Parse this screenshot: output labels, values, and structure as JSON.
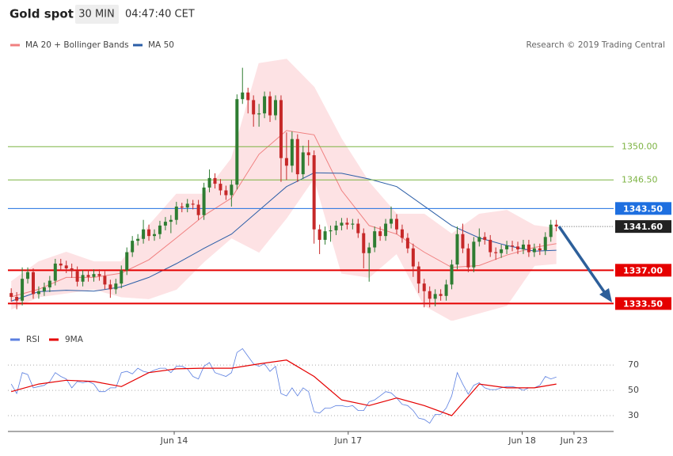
{
  "header": {
    "title": "Gold spot",
    "interval": "30 MIN",
    "time": "04:47:40 CET"
  },
  "credit": "Research © 2019 Trading Central",
  "chart_data": [
    {
      "type": "candlestick",
      "up_color": "#2e7d32",
      "down_color": "#c62828",
      "xlim": [
        -0.6,
        109.4
      ],
      "ylim": [
        1331.7,
        1359.6
      ],
      "open": [
        1334.6,
        1334.2,
        1333.8,
        1336.1,
        1336.8,
        1334.5,
        1334.8,
        1335.2,
        1335.9,
        1337.7,
        1337.5,
        1337.2,
        1336.9,
        1335.8,
        1336.5,
        1336.3,
        1336.6,
        1336.4,
        1335.5,
        1335.0,
        1335.6,
        1337.0,
        1338.9,
        1340.1,
        1340.3,
        1341.3,
        1340.6,
        1340.8,
        1341.7,
        1342.1,
        1342.3,
        1343.7,
        1343.6,
        1344.0,
        1343.9,
        1342.8,
        1345.7,
        1346.7,
        1346.1,
        1345.4,
        1344.9,
        1346.0,
        1355.0,
        1355.7,
        1354.9,
        1353.4,
        1353.5,
        1355.3,
        1353.3,
        1354.9,
        1348.8,
        1348.0,
        1350.8,
        1347.1,
        1349.4,
        1349.1,
        1341.3,
        1340.2,
        1341.1,
        1341.2,
        1341.7,
        1342.0,
        1341.8,
        1341.9,
        1340.9,
        1338.8,
        1339.4,
        1341.1,
        1340.6,
        1341.9,
        1342.4,
        1341.3,
        1340.4,
        1339.3,
        1337.4,
        1335.6,
        1334.8,
        1334.0,
        1334.5,
        1334.3,
        1335.5,
        1337.6,
        1340.8,
        1339.3,
        1337.3,
        1340.0,
        1340.5,
        1340.2,
        1338.9,
        1338.8,
        1339.2,
        1339.6,
        1339.5,
        1339.2,
        1339.7,
        1338.9,
        1339.3,
        1339.1,
        1340.5,
        1341.8
      ],
      "high": [
        1335.1,
        1334.7,
        1337.3,
        1337.3,
        1337.2,
        1335.3,
        1335.7,
        1336.4,
        1338.2,
        1338.2,
        1338.0,
        1337.7,
        1337.4,
        1337.0,
        1337.0,
        1337.1,
        1337.1,
        1336.9,
        1336.0,
        1336.1,
        1337.5,
        1339.4,
        1340.6,
        1340.8,
        1342.3,
        1341.8,
        1341.3,
        1342.2,
        1342.6,
        1342.8,
        1344.2,
        1344.1,
        1344.5,
        1344.4,
        1344.4,
        1346.2,
        1347.6,
        1347.2,
        1346.6,
        1345.9,
        1346.5,
        1355.5,
        1358.3,
        1356.2,
        1355.4,
        1354.5,
        1355.8,
        1355.8,
        1355.4,
        1355.4,
        1351.5,
        1351.6,
        1351.3,
        1350.1,
        1350.7,
        1349.6,
        1341.8,
        1341.6,
        1341.7,
        1342.2,
        1342.5,
        1342.5,
        1342.4,
        1342.4,
        1341.4,
        1339.9,
        1341.6,
        1341.6,
        1342.4,
        1343.7,
        1342.9,
        1341.8,
        1340.9,
        1339.8,
        1337.9,
        1336.1,
        1335.3,
        1335.0,
        1335.0,
        1336.0,
        1338.1,
        1341.6,
        1341.9,
        1339.8,
        1340.5,
        1341.4,
        1341.0,
        1340.7,
        1339.4,
        1339.7,
        1340.1,
        1340.1,
        1340.0,
        1340.2,
        1340.2,
        1339.8,
        1339.8,
        1341.0,
        1342.3,
        1342.3
      ],
      "low": [
        1333.7,
        1332.9,
        1333.3,
        1335.6,
        1334.0,
        1334.0,
        1334.3,
        1334.7,
        1335.4,
        1337.0,
        1336.7,
        1336.2,
        1335.3,
        1335.3,
        1335.8,
        1335.8,
        1335.9,
        1335.0,
        1334.1,
        1334.5,
        1335.1,
        1336.5,
        1338.4,
        1339.6,
        1339.8,
        1340.1,
        1340.1,
        1340.3,
        1341.2,
        1340.9,
        1341.8,
        1343.1,
        1343.1,
        1343.4,
        1342.3,
        1342.3,
        1345.2,
        1345.6,
        1344.9,
        1344.4,
        1343.7,
        1345.5,
        1354.5,
        1353.5,
        1352.1,
        1352.1,
        1353.0,
        1352.6,
        1352.8,
        1346.3,
        1346.5,
        1347.3,
        1346.3,
        1346.6,
        1348.0,
        1339.8,
        1338.7,
        1339.7,
        1340.0,
        1340.7,
        1341.2,
        1341.3,
        1341.3,
        1340.4,
        1337.2,
        1335.8,
        1338.9,
        1340.1,
        1340.1,
        1341.4,
        1340.8,
        1339.9,
        1338.8,
        1336.3,
        1334.6,
        1333.1,
        1333.1,
        1333.2,
        1333.8,
        1333.8,
        1335.0,
        1337.1,
        1338.8,
        1336.8,
        1336.8,
        1339.5,
        1339.7,
        1338.4,
        1338.1,
        1338.3,
        1338.7,
        1339.0,
        1338.7,
        1338.7,
        1338.4,
        1338.4,
        1338.6,
        1338.6,
        1340.0,
        1341.1
      ],
      "close": [
        1334.2,
        1333.8,
        1336.1,
        1336.8,
        1334.5,
        1334.8,
        1335.2,
        1335.9,
        1337.7,
        1337.5,
        1337.2,
        1336.9,
        1335.8,
        1336.5,
        1336.3,
        1336.6,
        1336.4,
        1335.5,
        1335.0,
        1335.6,
        1337.0,
        1338.9,
        1340.1,
        1340.3,
        1341.3,
        1340.6,
        1340.8,
        1341.7,
        1342.1,
        1342.3,
        1343.7,
        1343.6,
        1344.0,
        1343.9,
        1342.8,
        1345.7,
        1346.7,
        1346.1,
        1345.4,
        1344.9,
        1346.0,
        1355.0,
        1355.7,
        1354.9,
        1353.4,
        1353.5,
        1355.3,
        1353.3,
        1354.9,
        1348.8,
        1348.0,
        1350.8,
        1347.1,
        1349.4,
        1349.1,
        1341.3,
        1340.2,
        1341.1,
        1341.2,
        1341.7,
        1342.0,
        1341.8,
        1341.9,
        1340.9,
        1338.8,
        1339.4,
        1341.1,
        1340.6,
        1341.9,
        1342.4,
        1341.3,
        1340.4,
        1339.3,
        1337.4,
        1335.6,
        1334.8,
        1334.0,
        1334.5,
        1334.3,
        1335.5,
        1337.6,
        1340.8,
        1339.3,
        1337.3,
        1340.0,
        1340.5,
        1340.2,
        1338.9,
        1338.8,
        1339.2,
        1339.6,
        1339.5,
        1339.2,
        1339.7,
        1338.9,
        1339.3,
        1339.1,
        1340.5,
        1341.8,
        1341.6
      ],
      "series": [
        {
          "name": "MA 20 + Bollinger Bands",
          "color": "#f08080",
          "band_color": "#fde2e4",
          "x": [
            0,
            5,
            10,
            15,
            20,
            25,
            30,
            35,
            40,
            45,
            50,
            55,
            60,
            65,
            70,
            75,
            80,
            85,
            90,
            95,
            99
          ],
          "values": [
            1334.2,
            1335.0,
            1336.25,
            1336.25,
            1336.7,
            1338.1,
            1340.4,
            1342.75,
            1344.6,
            1349.2,
            1351.7,
            1351.25,
            1345.4,
            1341.7,
            1340.8,
            1338.9,
            1337.3,
            1337.5,
            1338.6,
            1339.4,
            1339.8
          ],
          "upper": [
            1335.8,
            1337.9,
            1338.9,
            1337.9,
            1337.9,
            1341.7,
            1345.0,
            1345.0,
            1348.75,
            1358.75,
            1359.2,
            1356.25,
            1350.8,
            1346.25,
            1342.9,
            1342.9,
            1340.8,
            1342.9,
            1343.3,
            1341.7,
            1341.4
          ],
          "lower": [
            1332.9,
            1334.2,
            1334.6,
            1335.0,
            1334.2,
            1334.0,
            1335.0,
            1337.9,
            1340.4,
            1338.9,
            1342.5,
            1346.7,
            1336.7,
            1336.25,
            1338.75,
            1333.3,
            1331.7,
            1332.5,
            1333.3,
            1337.5,
            1337.7
          ]
        },
        {
          "name": "MA 50",
          "color": "#2b5ea7",
          "x": [
            0,
            5,
            10,
            15,
            20,
            25,
            30,
            35,
            40,
            45,
            50,
            55,
            60,
            65,
            70,
            75,
            80,
            85,
            90,
            95,
            99
          ],
          "values": [
            1333.75,
            1334.75,
            1334.9,
            1334.8,
            1335.25,
            1336.25,
            1337.7,
            1339.3,
            1340.8,
            1343.3,
            1345.8,
            1347.25,
            1347.2,
            1346.6,
            1345.8,
            1343.75,
            1341.7,
            1340.4,
            1339.6,
            1339.0,
            1339.1
          ]
        }
      ],
      "levels": [
        {
          "value": 1350,
          "label": "1350.00",
          "color": "#7cb342",
          "style": "text",
          "line_width": 1
        },
        {
          "value": 1346.5,
          "label": "1346.50",
          "color": "#7cb342",
          "style": "text",
          "line_width": 1
        },
        {
          "value": 1343.5,
          "label": "1343.50",
          "color": "#1e6fe0",
          "style": "box",
          "line_width": 1
        },
        {
          "value": 1337,
          "label": "1337.00",
          "color": "#e50000",
          "style": "box",
          "line_width": 2
        },
        {
          "value": 1333.5,
          "label": "1333.50",
          "color": "#e50000",
          "style": "box",
          "line_width": 2
        }
      ],
      "last_price": {
        "value": 1341.6,
        "label": "1341.60",
        "color": "#222222"
      }
    },
    {
      "type": "line",
      "xlim": [
        -0.6,
        109.4
      ],
      "ylim": [
        20,
        87
      ],
      "xticks": [
        {
          "value": 29.6,
          "label": "Jun 14"
        },
        {
          "value": 61.2,
          "label": "Jun 17"
        },
        {
          "value": 92.8,
          "label": "Jun 18"
        },
        {
          "value": 102.2,
          "label": "Jun 23"
        }
      ],
      "yticks": [
        30,
        50,
        70
      ],
      "grid": true,
      "series": [
        {
          "name": "RSI",
          "color": "#5b7fe0",
          "values": [
            55,
            47.5,
            64,
            62.5,
            52,
            53,
            54,
            57,
            64,
            61,
            59,
            52,
            57,
            56,
            57,
            55,
            49,
            49,
            52,
            52,
            64,
            65,
            63,
            67.5,
            65,
            64,
            66,
            67.5,
            67.5,
            64,
            69,
            69,
            67,
            61,
            59,
            69,
            72,
            64,
            62.5,
            61,
            64,
            80,
            83,
            77,
            71,
            69,
            71,
            65,
            69,
            47.5,
            45.6,
            52,
            45.6,
            52,
            49,
            33,
            32,
            36,
            36,
            38,
            38,
            37,
            38,
            34,
            34,
            41,
            42.5,
            45.6,
            49,
            48,
            44,
            39,
            38,
            34,
            28,
            27,
            24,
            31,
            31,
            36,
            45.6,
            64,
            55,
            47,
            54,
            56,
            52,
            50.6,
            50.6,
            52,
            53,
            53,
            52,
            50,
            52,
            52,
            54,
            61,
            59,
            60.6
          ]
        },
        {
          "name": "9MA",
          "color": "#e50000",
          "x": [
            0,
            5,
            10,
            15,
            20,
            25,
            30,
            35,
            40,
            45,
            50,
            55,
            60,
            65,
            70,
            75,
            80,
            85,
            90,
            95,
            99
          ],
          "values": [
            49,
            55,
            58,
            57,
            53,
            64,
            67,
            67.5,
            67.5,
            71,
            74,
            61,
            42.5,
            38,
            44,
            38,
            30,
            55,
            52,
            52,
            55
          ]
        }
      ]
    }
  ]
}
